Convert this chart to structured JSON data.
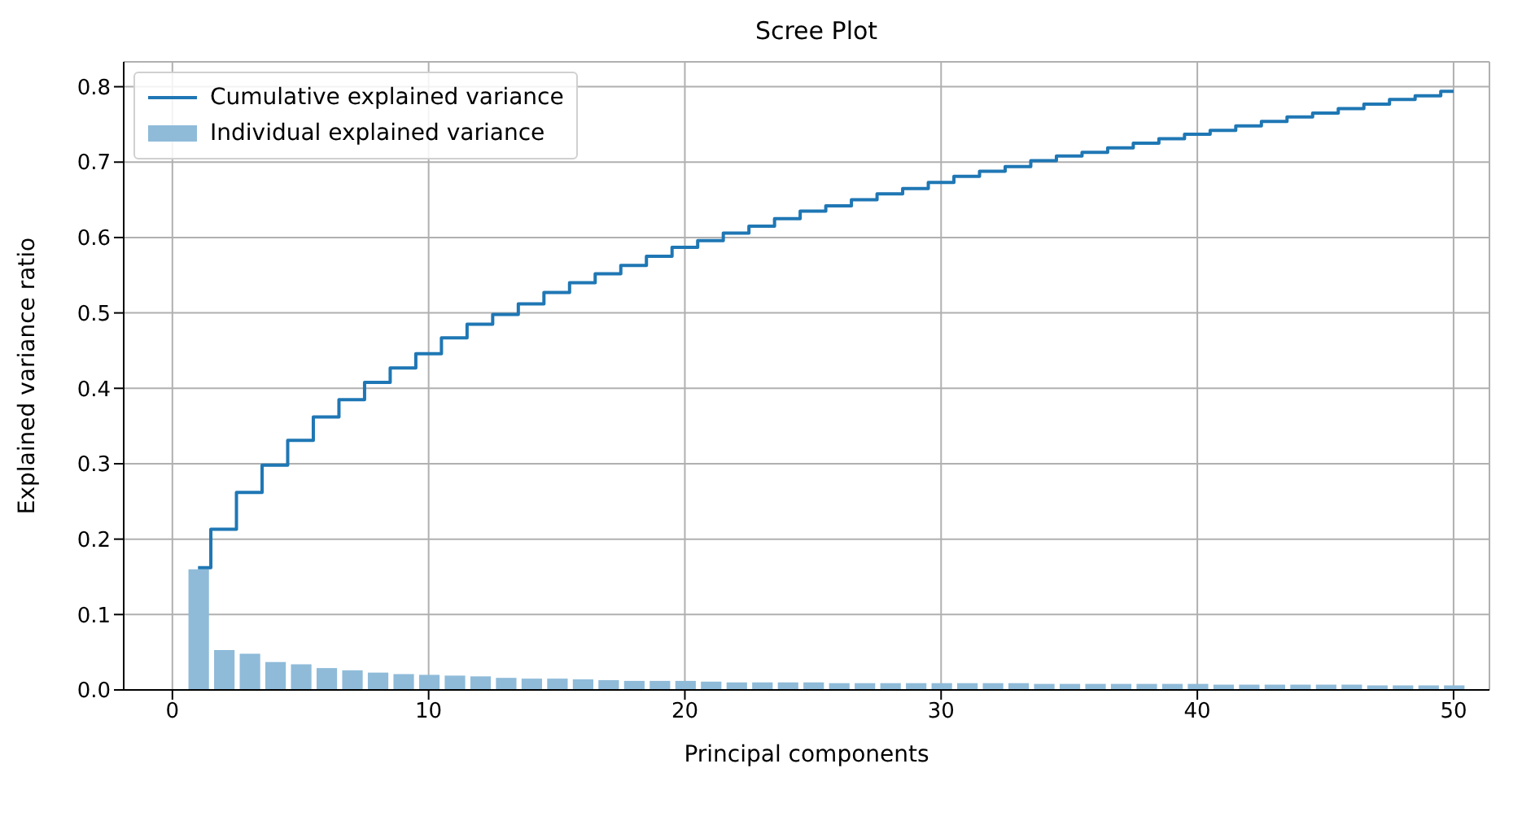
{
  "chart_data": {
    "type": "bar",
    "title": "Scree Plot",
    "xlabel": "Principal components",
    "ylabel": "Explained variance ratio",
    "x": [
      1,
      2,
      3,
      4,
      5,
      6,
      7,
      8,
      9,
      10,
      11,
      12,
      13,
      14,
      15,
      16,
      17,
      18,
      19,
      20,
      21,
      22,
      23,
      24,
      25,
      26,
      27,
      28,
      29,
      30,
      31,
      32,
      33,
      34,
      35,
      36,
      37,
      38,
      39,
      40,
      41,
      42,
      43,
      44,
      45,
      46,
      47,
      48,
      49,
      50
    ],
    "series": [
      {
        "name": "Cumulative explained variance",
        "type": "step",
        "color": "#1f77b4",
        "values": [
          0.162,
          0.213,
          0.262,
          0.298,
          0.331,
          0.362,
          0.385,
          0.408,
          0.427,
          0.446,
          0.467,
          0.485,
          0.498,
          0.512,
          0.527,
          0.54,
          0.552,
          0.563,
          0.575,
          0.587,
          0.596,
          0.606,
          0.615,
          0.625,
          0.635,
          0.642,
          0.65,
          0.658,
          0.665,
          0.673,
          0.681,
          0.688,
          0.694,
          0.702,
          0.708,
          0.713,
          0.719,
          0.725,
          0.731,
          0.737,
          0.742,
          0.748,
          0.754,
          0.76,
          0.765,
          0.771,
          0.777,
          0.783,
          0.788,
          0.794
        ]
      },
      {
        "name": "Individual explained variance",
        "color": "#8fbbd9",
        "values": [
          0.16,
          0.053,
          0.048,
          0.037,
          0.034,
          0.029,
          0.026,
          0.023,
          0.021,
          0.02,
          0.019,
          0.018,
          0.016,
          0.015,
          0.015,
          0.014,
          0.013,
          0.012,
          0.012,
          0.012,
          0.011,
          0.01,
          0.01,
          0.01,
          0.01,
          0.009,
          0.009,
          0.009,
          0.009,
          0.009,
          0.009,
          0.009,
          0.009,
          0.008,
          0.008,
          0.008,
          0.008,
          0.008,
          0.008,
          0.008,
          0.007,
          0.007,
          0.007,
          0.007,
          0.007,
          0.007,
          0.006,
          0.006,
          0.006,
          0.006
        ]
      }
    ],
    "xlim": [
      -1.9,
      51.4
    ],
    "xticks": [
      0,
      10,
      20,
      30,
      40,
      50
    ],
    "ylim": [
      0,
      0.833
    ],
    "yticks": [
      {
        "value": 0,
        "label": "0.0"
      },
      {
        "value": 0.1,
        "label": "0.1"
      },
      {
        "value": 0.2,
        "label": "0.2"
      },
      {
        "value": 0.3,
        "label": "0.3"
      },
      {
        "value": 0.4,
        "label": "0.4"
      },
      {
        "value": 0.5,
        "label": "0.5"
      },
      {
        "value": 0.6,
        "label": "0.6"
      },
      {
        "value": 0.7,
        "label": "0.7"
      },
      {
        "value": 0.8,
        "label": "0.8"
      }
    ],
    "grid": true,
    "legend": "top left"
  }
}
